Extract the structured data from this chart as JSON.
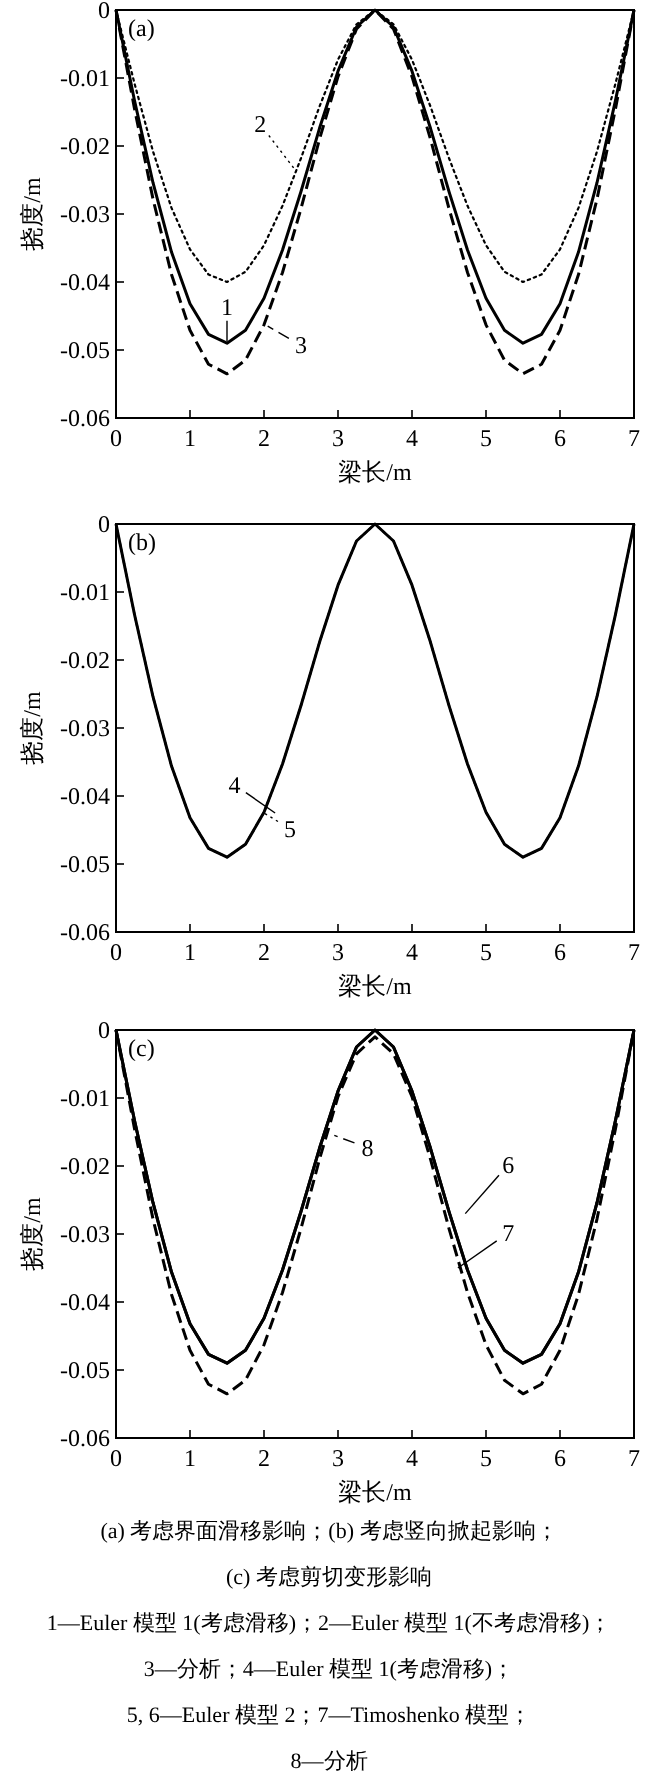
{
  "chart_data": [
    {
      "type": "line",
      "legend": "left",
      "title": "(a)",
      "xlabel": "梁长/m",
      "ylabel": "挠度/m",
      "xlim": [
        0,
        7
      ],
      "ylim": [
        -0.06,
        0
      ],
      "xticks": [
        0,
        1,
        2,
        3,
        4,
        5,
        6,
        7
      ],
      "yticks": [
        -0.06,
        -0.05,
        -0.04,
        -0.03,
        -0.02,
        -0.01,
        0
      ],
      "grid": false,
      "marker": "none",
      "x": [
        0,
        0.25,
        0.5,
        0.75,
        1,
        1.25,
        1.5,
        1.75,
        2,
        2.25,
        2.5,
        2.75,
        3,
        3.25,
        3.5,
        3.75,
        4,
        4.25,
        4.5,
        4.75,
        5,
        5.25,
        5.5,
        5.75,
        6,
        6.25,
        6.5,
        6.75,
        7
      ],
      "series": [
        {
          "name": "1",
          "color": "#000000",
          "line_style": "solid",
          "values": [
            0,
            -0.0133,
            -0.0254,
            -0.0356,
            -0.0432,
            -0.0477,
            -0.049,
            -0.0471,
            -0.0424,
            -0.0353,
            -0.0267,
            -0.0174,
            -0.009,
            -0.0025,
            0,
            -0.0025,
            -0.009,
            -0.0174,
            -0.0267,
            -0.0353,
            -0.0424,
            -0.0471,
            -0.049,
            -0.0477,
            -0.0432,
            -0.0356,
            -0.0254,
            -0.0133,
            0
          ]
        },
        {
          "name": "2",
          "color": "#000000",
          "line_style": "dotted",
          "values": [
            0,
            -0.0108,
            -0.0208,
            -0.0291,
            -0.0352,
            -0.0389,
            -0.04,
            -0.0385,
            -0.0346,
            -0.0288,
            -0.0218,
            -0.0142,
            -0.0073,
            -0.0021,
            0,
            -0.0021,
            -0.0073,
            -0.0142,
            -0.0218,
            -0.0288,
            -0.0346,
            -0.0385,
            -0.04,
            -0.0389,
            -0.0352,
            -0.0291,
            -0.0208,
            -0.0108,
            0
          ]
        },
        {
          "name": "3",
          "color": "#000000",
          "line_style": "dashed",
          "values": [
            0,
            -0.0145,
            -0.0278,
            -0.0389,
            -0.0471,
            -0.0521,
            -0.0535,
            -0.0515,
            -0.0463,
            -0.0386,
            -0.0292,
            -0.019,
            -0.0098,
            -0.0028,
            0,
            -0.0028,
            -0.0098,
            -0.019,
            -0.0292,
            -0.0386,
            -0.0463,
            -0.0515,
            -0.0535,
            -0.0521,
            -0.0471,
            -0.0389,
            -0.0278,
            -0.0145,
            0
          ]
        }
      ]
    },
    {
      "type": "line",
      "legend": "bottom left",
      "title": "(b)",
      "xlabel": "梁长/m",
      "ylabel": "挠度/m",
      "xlim": [
        0,
        7
      ],
      "ylim": [
        -0.06,
        0
      ],
      "xticks": [
        0,
        1,
        2,
        3,
        4,
        5,
        6,
        7
      ],
      "yticks": [
        -0.06,
        -0.05,
        -0.04,
        -0.03,
        -0.02,
        -0.01,
        0
      ],
      "grid": false,
      "marker": "none",
      "x": [
        0,
        0.25,
        0.5,
        0.75,
        1,
        1.25,
        1.5,
        1.75,
        2,
        2.25,
        2.5,
        2.75,
        3,
        3.25,
        3.5,
        3.75,
        4,
        4.25,
        4.5,
        4.75,
        5,
        5.25,
        5.5,
        5.75,
        6,
        6.25,
        6.5,
        6.75,
        7
      ],
      "series": [
        {
          "name": "4",
          "color": "#000000",
          "line_style": "solid",
          "values": [
            0,
            -0.0133,
            -0.0254,
            -0.0356,
            -0.0432,
            -0.0477,
            -0.049,
            -0.0471,
            -0.0424,
            -0.0353,
            -0.0267,
            -0.0174,
            -0.009,
            -0.0025,
            0,
            -0.0025,
            -0.009,
            -0.0174,
            -0.0267,
            -0.0353,
            -0.0424,
            -0.0471,
            -0.049,
            -0.0477,
            -0.0432,
            -0.0356,
            -0.0254,
            -0.0133,
            0
          ]
        },
        {
          "name": "5",
          "color": "#000000",
          "line_style": "dotted",
          "values": [
            0,
            -0.0133,
            -0.0254,
            -0.0356,
            -0.0432,
            -0.0477,
            -0.049,
            -0.0471,
            -0.0424,
            -0.0353,
            -0.0267,
            -0.0174,
            -0.009,
            -0.0025,
            0,
            -0.0025,
            -0.009,
            -0.0174,
            -0.0267,
            -0.0353,
            -0.0424,
            -0.0471,
            -0.049,
            -0.0477,
            -0.0432,
            -0.0356,
            -0.0254,
            -0.0133,
            0
          ]
        }
      ]
    },
    {
      "type": "line",
      "legend": "right",
      "title": "(c)",
      "xlabel": "梁长/m",
      "ylabel": "挠度/m",
      "xlim": [
        0,
        7
      ],
      "ylim": [
        -0.06,
        0
      ],
      "xticks": [
        0,
        1,
        2,
        3,
        4,
        5,
        6,
        7
      ],
      "yticks": [
        -0.06,
        -0.05,
        -0.04,
        -0.03,
        -0.02,
        -0.01,
        0
      ],
      "grid": false,
      "marker": "none",
      "x": [
        0,
        0.25,
        0.5,
        0.75,
        1,
        1.25,
        1.5,
        1.75,
        2,
        2.25,
        2.5,
        2.75,
        3,
        3.25,
        3.5,
        3.75,
        4,
        4.25,
        4.5,
        4.75,
        5,
        5.25,
        5.5,
        5.75,
        6,
        6.25,
        6.5,
        6.75,
        7
      ],
      "series": [
        {
          "name": "6",
          "color": "#000000",
          "line_style": "solid",
          "values": [
            0,
            -0.0133,
            -0.0254,
            -0.0356,
            -0.0432,
            -0.0477,
            -0.049,
            -0.0471,
            -0.0424,
            -0.0353,
            -0.0267,
            -0.0174,
            -0.009,
            -0.0025,
            0,
            -0.0025,
            -0.009,
            -0.0174,
            -0.0267,
            -0.0353,
            -0.0424,
            -0.0471,
            -0.049,
            -0.0477,
            -0.0432,
            -0.0356,
            -0.0254,
            -0.0133,
            0
          ]
        },
        {
          "name": "7",
          "color": "#000000",
          "line_style": "solid",
          "values": [
            0,
            -0.0133,
            -0.0254,
            -0.0356,
            -0.0432,
            -0.0477,
            -0.049,
            -0.0471,
            -0.0424,
            -0.0353,
            -0.0267,
            -0.0174,
            -0.009,
            -0.0025,
            0,
            -0.0025,
            -0.009,
            -0.0174,
            -0.0267,
            -0.0353,
            -0.0424,
            -0.0471,
            -0.049,
            -0.0477,
            -0.0432,
            -0.0356,
            -0.0254,
            -0.0133,
            0
          ]
        },
        {
          "name": "8",
          "color": "#000000",
          "line_style": "dashed",
          "values": [
            0,
            -0.0145,
            -0.0278,
            -0.0389,
            -0.0471,
            -0.0521,
            -0.0535,
            -0.0515,
            -0.0463,
            -0.0386,
            -0.0292,
            -0.019,
            -0.0098,
            -0.0035,
            -0.001,
            -0.0035,
            -0.0098,
            -0.019,
            -0.0292,
            -0.0386,
            -0.0463,
            -0.0515,
            -0.0535,
            -0.0521,
            -0.0471,
            -0.0389,
            -0.0278,
            -0.0145,
            0
          ]
        }
      ],
      "annotations": [
        "(a) 考虑界面滑移影响；(b) 考虑竖向掀起影响；",
        "(c) 考虑剪切变形影响",
        "1—Euler 模型 1(考虑滑移)；2—Euler 模型 1(不考虑滑移)；",
        "3—分析；4—Euler 模型 1(考虑滑移)；",
        "5, 6—Euler 模型 2；7—Timoshenko 模型；",
        "8—分析"
      ]
    }
  ]
}
